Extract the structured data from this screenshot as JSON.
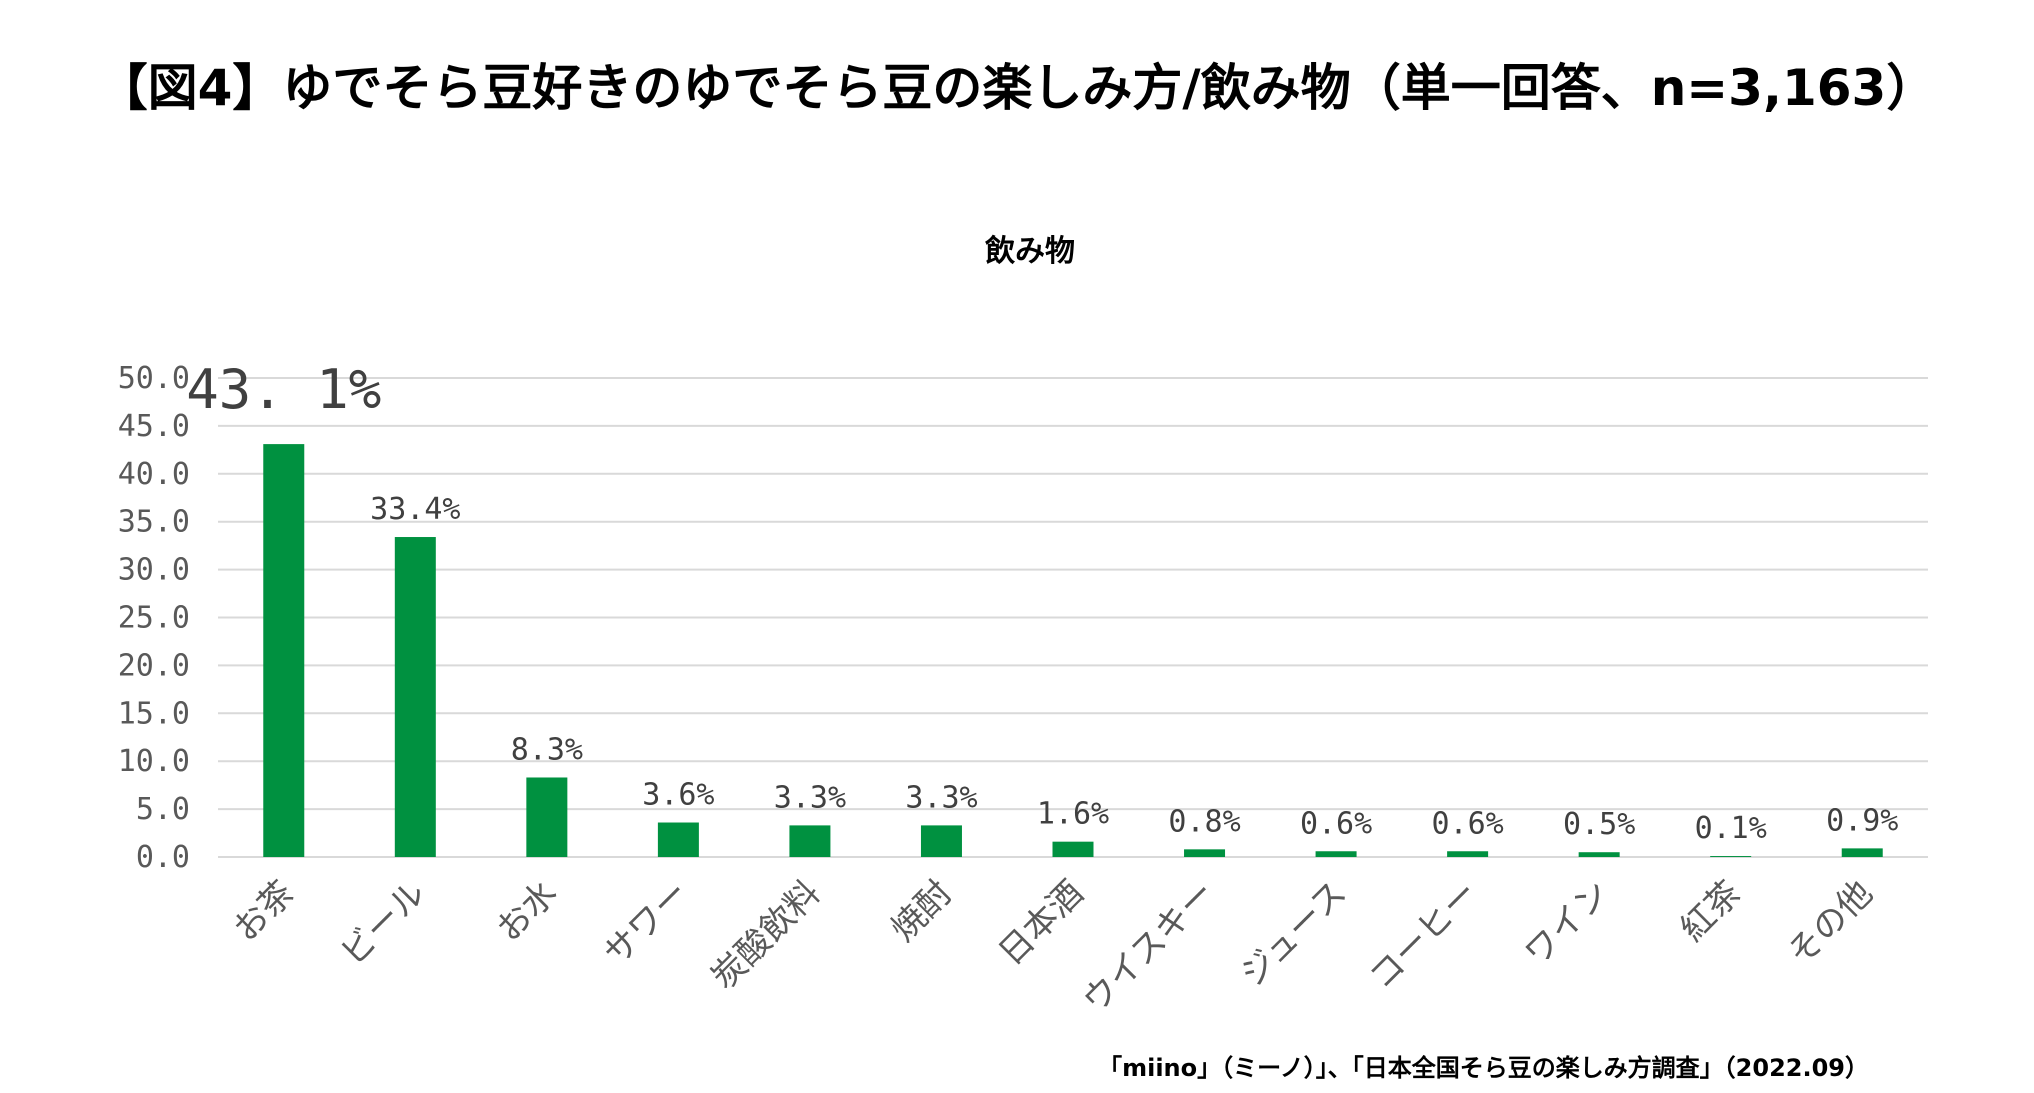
{
  "page_title": "【図4】ゆでそら豆好きのゆでそら豆の楽しみ方/飲み物（単一回答、n=3,163）",
  "source": "「miino」（ミーノ）」、「日本全国そら豆の楽しみ方調査」（2022.09）",
  "colors": {
    "bar": "#009140",
    "grid": "#d9d9d9",
    "axis_text": "#595959"
  },
  "chart_data": {
    "type": "bar",
    "title": "飲み物",
    "xlabel": "",
    "ylabel": "",
    "ylim": [
      0,
      50
    ],
    "y_ticks": [
      "0.0",
      "5.0",
      "10.0",
      "15.0",
      "20.0",
      "25.0",
      "30.0",
      "35.0",
      "40.0",
      "45.0",
      "50.0"
    ],
    "grid": true,
    "categories": [
      "お茶",
      "ビール",
      "お水",
      "サワー",
      "炭酸飲料",
      "焼酎",
      "日本酒",
      "ウイスキー",
      "ジュース",
      "コーヒー",
      "ワイン",
      "紅茶",
      "その他"
    ],
    "values": [
      43.1,
      33.4,
      8.3,
      3.6,
      3.3,
      3.3,
      1.6,
      0.8,
      0.6,
      0.6,
      0.5,
      0.1,
      0.9
    ],
    "data_labels": [
      "43. 1%",
      "33.4%",
      "8.3%",
      "3.6%",
      "3.3%",
      "3.3%",
      "1.6%",
      "0.8%",
      "0.6%",
      "0.6%",
      "0.5%",
      "0.1%",
      "0.9%"
    ]
  }
}
